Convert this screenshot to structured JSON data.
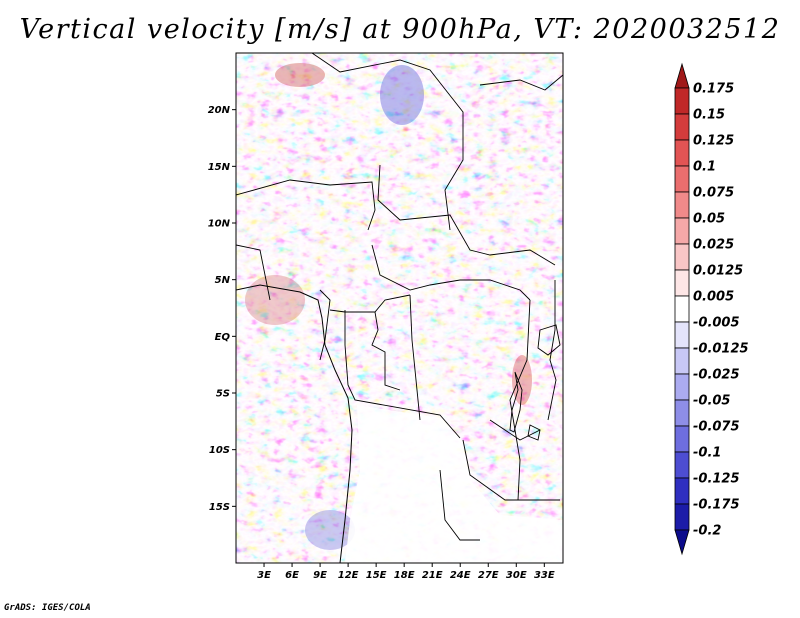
{
  "title": "Vertical velocity [m/s] at 900hPa, VT: 2020032512",
  "footer": "GrADS: IGES/COLA",
  "chart_data": {
    "type": "heatmap",
    "variable": "Vertical velocity",
    "units": "m/s",
    "level": "900hPa",
    "valid_time": "2020032512",
    "lon_range": [
      0,
      35
    ],
    "lat_range": [
      -20,
      25
    ],
    "xticks": [
      "3E",
      "6E",
      "9E",
      "12E",
      "15E",
      "18E",
      "21E",
      "24E",
      "27E",
      "30E",
      "33E"
    ],
    "yticks": [
      "20N",
      "15N",
      "10N",
      "5N",
      "EQ",
      "5S",
      "10S",
      "15S"
    ],
    "colorbar": {
      "labels": [
        "0.175",
        "0.15",
        "0.125",
        "0.1",
        "0.075",
        "0.05",
        "0.025",
        "0.0125",
        "0.005",
        "-0.005",
        "-0.0125",
        "-0.025",
        "-0.05",
        "-0.075",
        "-0.1",
        "-0.125",
        "-0.175",
        "-0.2"
      ],
      "colors": [
        "#a01818",
        "#c02828",
        "#d43c3c",
        "#e25454",
        "#ea6e6e",
        "#f08a8a",
        "#f5a8a8",
        "#f9c6c6",
        "#fde6e6",
        "#ffffff",
        "#e4e4fb",
        "#c8c8f6",
        "#ababf0",
        "#8e8ee8",
        "#6e6edf",
        "#4d4dd2",
        "#2f2fc0",
        "#1c1ca8",
        "#0c0c8c"
      ]
    }
  }
}
